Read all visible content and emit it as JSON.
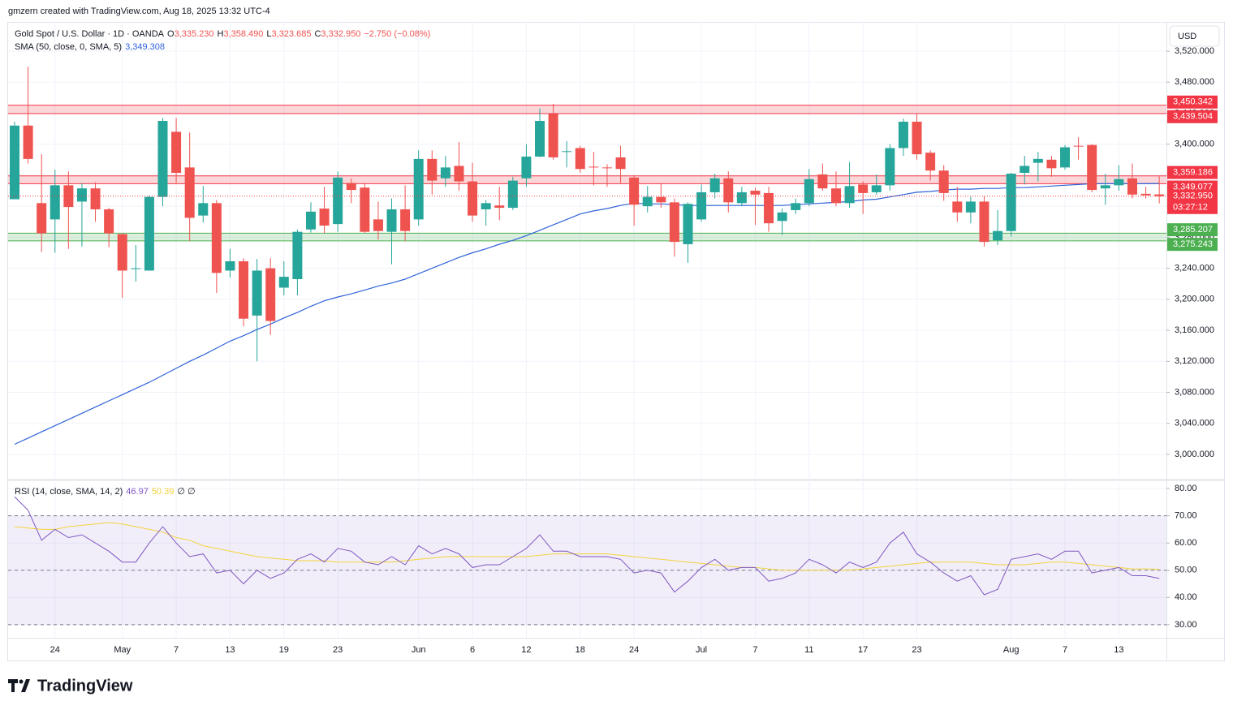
{
  "header": {
    "credit": "gmzern created with TradingView.com, Aug 18, 2025 13:32 UTC-4",
    "currency": "USD",
    "logo": "TradingView"
  },
  "chart_data": [
    {
      "type": "candlestick",
      "title": "Gold Spot / U.S. Dollar · 1D · OANDA",
      "ohlc_legend": [
        {
          "key": "O",
          "value": "3,335.230"
        },
        {
          "key": "H",
          "value": "3,358.490"
        },
        {
          "key": "L",
          "value": "3,323.685"
        },
        {
          "key": "C",
          "value": "3,332.950"
        }
      ],
      "change": "−2.750 (−0.08%)",
      "categories": [
        null,
        null,
        null,
        "24",
        null,
        null,
        null,
        null,
        "May",
        null,
        null,
        null,
        "7",
        null,
        null,
        null,
        "13",
        null,
        null,
        null,
        "19",
        null,
        null,
        null,
        "23",
        null,
        null,
        null,
        null,
        null,
        "Jun",
        null,
        null,
        null,
        "6",
        null,
        null,
        null,
        "12",
        null,
        null,
        null,
        "18",
        null,
        null,
        null,
        "24",
        null,
        null,
        null,
        null,
        "Jul",
        null,
        null,
        null,
        "7",
        null,
        null,
        null,
        "11",
        null,
        null,
        null,
        "17",
        null,
        null,
        null,
        "23",
        null,
        null,
        null,
        null,
        null,
        null,
        "Aug",
        null,
        null,
        null,
        "7",
        null,
        null,
        null,
        "13",
        null,
        null,
        null
      ],
      "series": [
        {
          "up_color": "#26a69a",
          "down_color": "#ef5350",
          "open": [
            3329,
            3424,
            3324,
            3303,
            3347,
            3326,
            3343,
            3316,
            3284,
            3239,
            3237,
            3332,
            3416,
            3370,
            3308,
            3324,
            3237,
            3249,
            3179,
            3240,
            3215,
            3226,
            3290,
            3317,
            3297,
            3350,
            3344,
            3303,
            3287,
            3316,
            3303,
            3381,
            3356,
            3372,
            3352,
            3316,
            3321,
            3318,
            3356,
            3384,
            3439,
            3390,
            3395,
            3371,
            3370,
            3383,
            3357,
            3320,
            3332,
            3325,
            3271,
            3303,
            3338,
            3356,
            3324,
            3340,
            3337,
            3301,
            3315,
            3324,
            3361,
            3343,
            3324,
            3348,
            3338,
            3347,
            3395,
            3429,
            3389,
            3366,
            3326,
            3312,
            3326,
            3276,
            3288,
            3363,
            3376,
            3380,
            3370,
            3398,
            3399,
            3343,
            3347,
            3356,
            3336,
            3335.23
          ],
          "high": [
            3429,
            3500,
            3387,
            3367,
            3365,
            3350,
            3351,
            3318,
            3285,
            3270,
            3334,
            3434,
            3434,
            3415,
            3346,
            3328,
            3265,
            3253,
            3252,
            3253,
            3249,
            3290,
            3325,
            3345,
            3365,
            3356,
            3350,
            3326,
            3330,
            3347,
            3392,
            3392,
            3385,
            3403,
            3376,
            3328,
            3345,
            3358,
            3400,
            3446,
            3452,
            3404,
            3398,
            3390,
            3374,
            3398,
            3360,
            3346,
            3350,
            3330,
            3325,
            3348,
            3362,
            3365,
            3345,
            3344,
            3345,
            3317,
            3330,
            3368,
            3375,
            3365,
            3377,
            3352,
            3361,
            3400,
            3433,
            3439,
            3392,
            3373,
            3345,
            3332,
            3333,
            3315,
            3363,
            3385,
            3390,
            3385,
            3399,
            3409,
            3400,
            3362,
            3373,
            3375,
            3345,
            3358.49
          ],
          "low": [
            3329,
            3375,
            3261,
            3260,
            3265,
            3268,
            3300,
            3267,
            3202,
            3223,
            3237,
            3320,
            3350,
            3275,
            3299,
            3208,
            3228,
            3165,
            3120,
            3154,
            3205,
            3205,
            3286,
            3285,
            3287,
            3324,
            3285,
            3277,
            3245,
            3275,
            3295,
            3335,
            3345,
            3340,
            3300,
            3295,
            3302,
            3315,
            3345,
            3383,
            3380,
            3370,
            3363,
            3347,
            3345,
            3350,
            3295,
            3312,
            3318,
            3255,
            3247,
            3300,
            3330,
            3312,
            3320,
            3296,
            3287,
            3283,
            3310,
            3320,
            3340,
            3320,
            3318,
            3310,
            3335,
            3340,
            3385,
            3380,
            3353,
            3327,
            3300,
            3298,
            3268,
            3270,
            3281,
            3348,
            3352,
            3358,
            3367,
            3380,
            3338,
            3322,
            3340,
            3330,
            3330,
            3323.685
          ],
          "close": [
            3424,
            3381,
            3285,
            3347,
            3319,
            3343,
            3316,
            3285,
            3237,
            3240,
            3332,
            3430,
            3363,
            3305,
            3324,
            3234,
            3249,
            3175,
            3237,
            3172,
            3229,
            3287,
            3313,
            3295,
            3357,
            3341,
            3287,
            3288,
            3316,
            3288,
            3381,
            3353,
            3370,
            3352,
            3308,
            3324,
            3318,
            3353,
            3384,
            3430,
            3383,
            3391,
            3368,
            3370,
            3369,
            3368,
            3322,
            3332,
            3325,
            3274,
            3323,
            3338,
            3356,
            3325,
            3338,
            3335,
            3298,
            3312,
            3324,
            3355,
            3343,
            3324,
            3346,
            3337,
            3347,
            3395,
            3429,
            3387,
            3366,
            3337,
            3312,
            3326,
            3274,
            3288,
            3362,
            3372,
            3381,
            3369,
            3396,
            3397,
            3341,
            3347,
            3355,
            3335,
            3334,
            3332.95
          ]
        }
      ],
      "overlays": [
        {
          "name": "SMA (50, close, 0, SMA, 5)",
          "value_label": "3,349.308",
          "color": "#2f63d9",
          "values": [
            3013,
            3021,
            3029,
            3037,
            3045,
            3053,
            3061,
            3069,
            3077,
            3085,
            3093,
            3102,
            3111,
            3120,
            3128,
            3137,
            3146,
            3153,
            3161,
            3168,
            3176,
            3183,
            3191,
            3198,
            3203,
            3207,
            3212,
            3217,
            3221,
            3226,
            3233,
            3240,
            3247,
            3254,
            3260,
            3265,
            3271,
            3276,
            3282,
            3289,
            3296,
            3303,
            3310,
            3314,
            3317,
            3321,
            3324,
            3323,
            3323,
            3322,
            3321,
            3321,
            3321,
            3321,
            3321,
            3321,
            3321,
            3321,
            3322,
            3323,
            3324,
            3325,
            3326,
            3328,
            3329,
            3332,
            3335,
            3338,
            3339,
            3341,
            3342,
            3342,
            3343,
            3343,
            3344,
            3344,
            3345,
            3346,
            3347,
            3348,
            3349,
            3349,
            3349,
            3349,
            3349,
            3349.308
          ]
        }
      ],
      "zones": [
        {
          "low": 3439.504,
          "high": 3450.342,
          "low_label": "3,439.504",
          "high_label": "3,450.342",
          "color": "#f23645"
        },
        {
          "low": 3349.077,
          "high": 3359.186,
          "low_label": "3,349.077",
          "high_label": "3,359.186",
          "color": "#f23645"
        },
        {
          "low": 3275.243,
          "high": 3285.207,
          "low_label": "3,275.243",
          "high_label": "3,285.207",
          "color": "#4caf50"
        }
      ],
      "last_price": {
        "value": 3332.95,
        "label": "3,332.950",
        "countdown": "03:27:12",
        "color": "#f23645"
      },
      "ylim": [
        2967.5,
        3557.7
      ],
      "yticks": [
        {
          "value": 3000,
          "label": "3,000.000"
        },
        {
          "value": 3040,
          "label": "3,040.000"
        },
        {
          "value": 3080,
          "label": "3,080.000"
        },
        {
          "value": 3120,
          "label": "3,120.000"
        },
        {
          "value": 3160,
          "label": "3,160.000"
        },
        {
          "value": 3200,
          "label": "3,200.000"
        },
        {
          "value": 3240,
          "label": "3,240.000"
        },
        {
          "value": 3280,
          "label": "3,280.000"
        },
        {
          "value": 3320,
          "label": "3,320.000"
        },
        {
          "value": 3360,
          "label": "3,360.000"
        },
        {
          "value": 3400,
          "label": "3,400.000"
        },
        {
          "value": 3440,
          "label": "3,440.000"
        },
        {
          "value": 3480,
          "label": "3,480.000"
        },
        {
          "value": 3520,
          "label": "3,520.000"
        }
      ],
      "grid": true
    },
    {
      "type": "line",
      "title": "RSI (14, close, SMA, 14, 2)",
      "extra": "∅ ∅",
      "series": [
        {
          "value_label": "46.97",
          "color": "#7e57c2",
          "values": [
            77,
            72,
            61,
            65,
            62,
            63,
            60,
            57,
            53,
            53,
            60,
            66,
            60,
            55,
            56,
            49,
            50,
            45,
            50,
            47,
            49,
            54,
            56,
            53,
            58,
            57,
            53,
            52,
            55,
            52,
            59,
            56,
            58,
            56,
            51,
            52,
            52,
            55,
            58,
            63,
            57,
            57,
            55,
            55,
            55,
            54,
            49,
            50,
            49,
            42,
            46,
            51,
            54,
            50,
            51,
            51,
            46,
            47,
            49,
            54,
            52,
            49,
            53,
            51,
            53,
            60,
            64,
            56,
            53,
            49,
            46,
            48,
            41,
            43,
            54,
            55,
            56,
            54,
            57,
            57,
            49,
            50,
            51,
            48,
            48,
            46.97
          ]
        },
        {
          "value_label": "50.39",
          "color": "#f2d33c",
          "values": [
            66,
            65.5,
            65,
            65,
            66,
            66.5,
            67,
            67.5,
            67,
            66,
            65,
            64,
            62,
            61,
            59,
            58,
            57,
            56,
            55,
            54.5,
            54,
            53.5,
            53.5,
            53.5,
            53,
            53,
            53,
            53,
            53,
            53.5,
            54,
            54.5,
            55,
            55,
            55,
            55,
            55,
            55,
            55,
            55.5,
            56,
            56,
            56,
            56,
            56,
            55.5,
            55,
            54.5,
            54,
            53.5,
            53,
            52.5,
            52,
            51.5,
            51,
            51,
            50.5,
            50,
            50,
            50,
            50,
            50,
            50,
            50.5,
            51,
            51.5,
            52,
            52.5,
            53,
            53,
            53,
            53,
            52.5,
            52,
            52,
            52,
            52.5,
            53,
            53,
            52.5,
            52,
            51.5,
            51,
            50.5,
            50.5,
            50.39
          ]
        }
      ],
      "levels": [
        70,
        50,
        30
      ],
      "ylim": [
        25.2,
        83
      ],
      "yticks": [
        {
          "value": 30,
          "label": "30.00"
        },
        {
          "value": 40,
          "label": "40.00"
        },
        {
          "value": 50,
          "label": "50.00"
        },
        {
          "value": 60,
          "label": "60.00"
        },
        {
          "value": 70,
          "label": "70.00"
        },
        {
          "value": 80,
          "label": "80.00"
        }
      ],
      "grid": true
    }
  ]
}
